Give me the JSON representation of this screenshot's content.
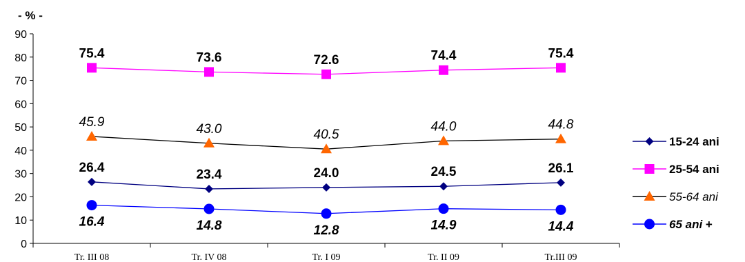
{
  "chart_data": {
    "type": "line",
    "unit_label": "- % -",
    "categories": [
      "Tr. III 08",
      "Tr. IV 08",
      "Tr. I 09",
      "Tr. II 09",
      "Tr.III 09"
    ],
    "ylim": [
      0,
      90
    ],
    "yticks": [
      0,
      10,
      20,
      30,
      40,
      50,
      60,
      70,
      80,
      90
    ],
    "grid": false,
    "legend_position": "right",
    "series": [
      {
        "name": "15-24 ani",
        "values": [
          26.4,
          23.4,
          24.0,
          24.5,
          26.1
        ],
        "labels": [
          "26.4",
          "23.4",
          "24.0",
          "24.5",
          "26.1"
        ],
        "color": "#000080",
        "marker": "diamond",
        "label_style": "bold",
        "label_position": "above"
      },
      {
        "name": "25-54 ani",
        "values": [
          75.4,
          73.6,
          72.6,
          74.4,
          75.4
        ],
        "labels": [
          "75.4",
          "73.6",
          "72.6",
          "74.4",
          "75.4"
        ],
        "color": "#ff00ff",
        "marker": "square",
        "label_style": "bold",
        "label_position": "above"
      },
      {
        "name": "55-64 ani",
        "values": [
          45.9,
          43.0,
          40.5,
          44.0,
          44.8
        ],
        "labels": [
          "45.9",
          "43.0",
          "40.5",
          "44.0",
          "44.8"
        ],
        "color": "#000000",
        "marker_color": "#ff6600",
        "marker": "triangle",
        "label_style": "italic",
        "label_position": "above"
      },
      {
        "name_parts": [
          "65 ani",
          " +"
        ],
        "values": [
          16.4,
          14.8,
          12.8,
          14.9,
          14.4
        ],
        "labels": [
          "16.4",
          "14.8",
          "12.8",
          "14.9",
          "14.4"
        ],
        "color": "#0000ff",
        "marker": "circle",
        "label_style": "bold-italic",
        "label_position": "below"
      }
    ]
  }
}
